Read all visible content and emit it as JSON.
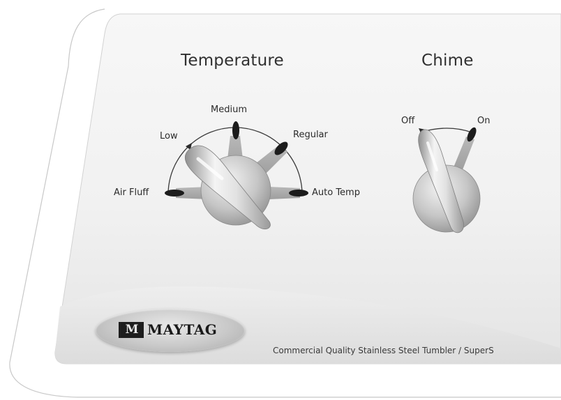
{
  "panel": {
    "temperature": {
      "title": "Temperature",
      "settings": [
        "Air Fluff",
        "Low",
        "Medium",
        "Regular",
        "Auto Temp"
      ],
      "selected": "Low"
    },
    "chime": {
      "title": "Chime",
      "settings": [
        "Off",
        "On"
      ],
      "selected": "Off"
    },
    "brand": {
      "mark": "M",
      "name": "MAYTAG"
    },
    "tagline": "Commercial Quality Stainless Steel Tumbler / SuperS"
  }
}
